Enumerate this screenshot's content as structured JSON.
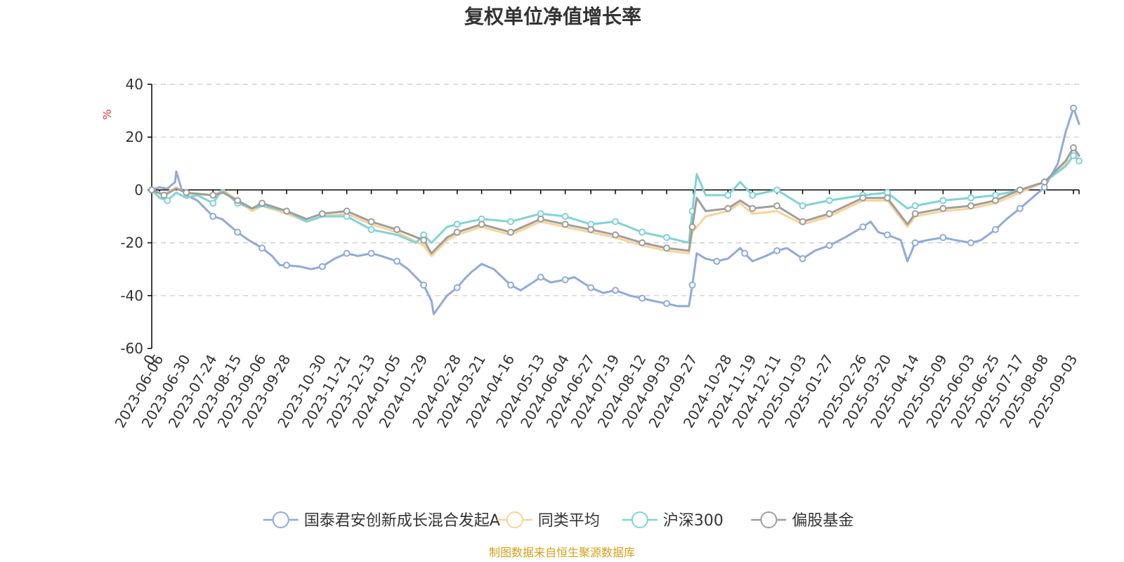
{
  "chart_data": {
    "type": "line",
    "title": "复权单位净值增长率",
    "ylabel": "%",
    "ylim": [
      -60,
      40
    ],
    "yticks": [
      40,
      20,
      0,
      -20,
      -40,
      -60
    ],
    "x_start_label": "0",
    "x_dates": [
      "2023-06-06",
      "2023-06-30",
      "2023-07-24",
      "2023-08-15",
      "2023-09-06",
      "2023-09-28",
      "2023-10-30",
      "2023-11-21",
      "2023-12-13",
      "2024-01-05",
      "2024-01-29",
      "2024-02-28",
      "2024-03-21",
      "2024-04-16",
      "2024-05-13",
      "2024-06-04",
      "2024-06-27",
      "2024-07-19",
      "2024-08-12",
      "2024-09-03",
      "2024-09-27",
      "2024-10-28",
      "2024-11-19",
      "2024-12-11",
      "2025-01-03",
      "2025-01-27",
      "2025-02-26",
      "2025-03-20",
      "2025-04-14",
      "2025-05-09",
      "2025-06-03",
      "2025-06-25",
      "2025-07-17",
      "2025-08-08",
      "2025-09-03"
    ],
    "x_end": "2025-09-08",
    "grid": true,
    "legend_position": "bottom-center",
    "series": [
      {
        "name": "国泰君安创新成长混合发起A",
        "color": "#8faadc",
        "points": [
          [
            "2023-05-30",
            0
          ],
          [
            "2023-06-06",
            1
          ],
          [
            "2023-06-13",
            0.5
          ],
          [
            "2023-06-20",
            3
          ],
          [
            "2023-06-21",
            7
          ],
          [
            "2023-06-26",
            0
          ],
          [
            "2023-06-30",
            -2
          ],
          [
            "2023-07-10",
            -4
          ],
          [
            "2023-07-24",
            -10
          ],
          [
            "2023-08-01",
            -11
          ],
          [
            "2023-08-15",
            -16
          ],
          [
            "2023-08-25",
            -19
          ],
          [
            "2023-09-06",
            -22
          ],
          [
            "2023-09-15",
            -25
          ],
          [
            "2023-09-22",
            -28.5
          ],
          [
            "2023-09-28",
            -28.5
          ],
          [
            "2023-10-10",
            -29
          ],
          [
            "2023-10-20",
            -30
          ],
          [
            "2023-10-30",
            -29
          ],
          [
            "2023-11-10",
            -26
          ],
          [
            "2023-11-21",
            -24
          ],
          [
            "2023-12-01",
            -25
          ],
          [
            "2023-12-13",
            -24
          ],
          [
            "2023-12-22",
            -25
          ],
          [
            "2024-01-05",
            -27
          ],
          [
            "2024-01-15",
            -30
          ],
          [
            "2024-01-22",
            -33
          ],
          [
            "2024-01-29",
            -36
          ],
          [
            "2024-02-05",
            -42
          ],
          [
            "2024-02-07",
            -47
          ],
          [
            "2024-02-19",
            -40
          ],
          [
            "2024-02-28",
            -37
          ],
          [
            "2024-03-05",
            -34
          ],
          [
            "2024-03-12",
            -31
          ],
          [
            "2024-03-21",
            -28
          ],
          [
            "2024-04-01",
            -30
          ],
          [
            "2024-04-16",
            -36
          ],
          [
            "2024-04-25",
            -38
          ],
          [
            "2024-05-06",
            -35
          ],
          [
            "2024-05-13",
            -33
          ],
          [
            "2024-05-22",
            -35
          ],
          [
            "2024-06-04",
            -34
          ],
          [
            "2024-06-12",
            -33
          ],
          [
            "2024-06-27",
            -37
          ],
          [
            "2024-07-08",
            -39
          ],
          [
            "2024-07-19",
            -38
          ],
          [
            "2024-08-01",
            -40
          ],
          [
            "2024-08-12",
            -41
          ],
          [
            "2024-08-22",
            -42
          ],
          [
            "2024-09-03",
            -43
          ],
          [
            "2024-09-13",
            -44
          ],
          [
            "2024-09-23",
            -44
          ],
          [
            "2024-09-26",
            -36
          ],
          [
            "2024-09-30",
            -24
          ],
          [
            "2024-10-08",
            -26
          ],
          [
            "2024-10-18",
            -27
          ],
          [
            "2024-10-28",
            -26
          ],
          [
            "2024-11-08",
            -22
          ],
          [
            "2024-11-12",
            -24
          ],
          [
            "2024-11-19",
            -27
          ],
          [
            "2024-12-01",
            -25
          ],
          [
            "2024-12-11",
            -23
          ],
          [
            "2024-12-20",
            -22
          ],
          [
            "2025-01-03",
            -26
          ],
          [
            "2025-01-14",
            -23
          ],
          [
            "2025-01-27",
            -21
          ],
          [
            "2025-02-10",
            -18
          ],
          [
            "2025-02-26",
            -14
          ],
          [
            "2025-03-05",
            -12
          ],
          [
            "2025-03-12",
            -16
          ],
          [
            "2025-03-20",
            -17
          ],
          [
            "2025-04-01",
            -19
          ],
          [
            "2025-04-07",
            -27
          ],
          [
            "2025-04-14",
            -20
          ],
          [
            "2025-04-25",
            -19
          ],
          [
            "2025-05-09",
            -18
          ],
          [
            "2025-05-20",
            -19
          ],
          [
            "2025-06-03",
            -20
          ],
          [
            "2025-06-12",
            -19
          ],
          [
            "2025-06-25",
            -15
          ],
          [
            "2025-07-05",
            -11
          ],
          [
            "2025-07-17",
            -7
          ],
          [
            "2025-07-28",
            -3
          ],
          [
            "2025-08-08",
            1
          ],
          [
            "2025-08-20",
            10
          ],
          [
            "2025-08-27",
            22
          ],
          [
            "2025-09-03",
            31
          ],
          [
            "2025-09-08",
            25
          ]
        ],
        "marker_dates": [
          "2023-05-30",
          "2023-07-24",
          "2023-08-15",
          "2023-09-06",
          "2023-09-28",
          "2023-10-30",
          "2023-11-21",
          "2023-12-13",
          "2024-01-05",
          "2024-01-29",
          "2024-02-28",
          "2024-04-16",
          "2024-05-13",
          "2024-06-04",
          "2024-06-27",
          "2024-07-19",
          "2024-08-12",
          "2024-09-03",
          "2024-09-26",
          "2024-10-18",
          "2024-11-12",
          "2024-12-11",
          "2025-01-03",
          "2025-01-27",
          "2025-02-26",
          "2025-03-20",
          "2025-04-14",
          "2025-05-09",
          "2025-06-03",
          "2025-06-25",
          "2025-07-17",
          "2025-08-08",
          "2025-09-03"
        ]
      },
      {
        "name": "同类平均",
        "color": "#fcd295",
        "points": [
          [
            "2023-05-30",
            0
          ],
          [
            "2023-06-10",
            -1.5
          ],
          [
            "2023-06-21",
            1
          ],
          [
            "2023-06-30",
            -1.5
          ],
          [
            "2023-07-24",
            -2
          ],
          [
            "2023-08-02",
            0
          ],
          [
            "2023-08-15",
            -4
          ],
          [
            "2023-08-28",
            -8
          ],
          [
            "2023-09-06",
            -6
          ],
          [
            "2023-09-28",
            -9
          ],
          [
            "2023-10-16",
            -12
          ],
          [
            "2023-10-30",
            -10
          ],
          [
            "2023-11-21",
            -9
          ],
          [
            "2023-12-13",
            -13
          ],
          [
            "2024-01-05",
            -16
          ],
          [
            "2024-01-29",
            -21
          ],
          [
            "2024-02-05",
            -25
          ],
          [
            "2024-02-19",
            -19
          ],
          [
            "2024-02-28",
            -17
          ],
          [
            "2024-03-21",
            -14
          ],
          [
            "2024-04-16",
            -17
          ],
          [
            "2024-05-13",
            -12
          ],
          [
            "2024-06-04",
            -14
          ],
          [
            "2024-06-27",
            -16
          ],
          [
            "2024-07-19",
            -18
          ],
          [
            "2024-08-12",
            -21
          ],
          [
            "2024-09-03",
            -23
          ],
          [
            "2024-09-23",
            -24
          ],
          [
            "2024-09-26",
            -16
          ],
          [
            "2024-10-08",
            -10
          ],
          [
            "2024-10-28",
            -8
          ],
          [
            "2024-11-08",
            -5
          ],
          [
            "2024-11-19",
            -9
          ],
          [
            "2024-12-11",
            -8
          ],
          [
            "2025-01-03",
            -13
          ],
          [
            "2025-01-27",
            -10
          ],
          [
            "2025-02-26",
            -4
          ],
          [
            "2025-03-20",
            -4
          ],
          [
            "2025-04-07",
            -14
          ],
          [
            "2025-04-14",
            -10
          ],
          [
            "2025-05-09",
            -8
          ],
          [
            "2025-06-03",
            -7
          ],
          [
            "2025-06-25",
            -5
          ],
          [
            "2025-07-17",
            -1
          ],
          [
            "2025-08-08",
            3
          ],
          [
            "2025-08-27",
            10
          ],
          [
            "2025-09-03",
            13
          ],
          [
            "2025-09-08",
            12
          ]
        ],
        "marker_dates": []
      },
      {
        "name": "沪深300",
        "color": "#7fd3d7",
        "points": [
          [
            "2023-05-30",
            0
          ],
          [
            "2023-06-06",
            -3
          ],
          [
            "2023-06-13",
            -4
          ],
          [
            "2023-06-21",
            -1
          ],
          [
            "2023-06-30",
            -3
          ],
          [
            "2023-07-10",
            -2
          ],
          [
            "2023-07-24",
            -5
          ],
          [
            "2023-08-01",
            0
          ],
          [
            "2023-08-15",
            -5
          ],
          [
            "2023-08-28",
            -7
          ],
          [
            "2023-09-06",
            -6
          ],
          [
            "2023-09-28",
            -8
          ],
          [
            "2023-10-16",
            -12
          ],
          [
            "2023-10-30",
            -10
          ],
          [
            "2023-11-21",
            -10
          ],
          [
            "2023-12-13",
            -15
          ],
          [
            "2024-01-05",
            -17
          ],
          [
            "2024-01-22",
            -20
          ],
          [
            "2024-01-29",
            -17
          ],
          [
            "2024-02-05",
            -20
          ],
          [
            "2024-02-19",
            -14
          ],
          [
            "2024-02-28",
            -13
          ],
          [
            "2024-03-21",
            -11
          ],
          [
            "2024-04-16",
            -12
          ],
          [
            "2024-05-13",
            -9
          ],
          [
            "2024-06-04",
            -10
          ],
          [
            "2024-06-27",
            -13
          ],
          [
            "2024-07-19",
            -12
          ],
          [
            "2024-08-12",
            -16
          ],
          [
            "2024-09-03",
            -18
          ],
          [
            "2024-09-23",
            -20
          ],
          [
            "2024-09-26",
            -8
          ],
          [
            "2024-09-30",
            6
          ],
          [
            "2024-10-08",
            -2
          ],
          [
            "2024-10-28",
            -2
          ],
          [
            "2024-11-08",
            3
          ],
          [
            "2024-11-19",
            -2
          ],
          [
            "2024-12-11",
            0
          ],
          [
            "2025-01-03",
            -6
          ],
          [
            "2025-01-27",
            -4
          ],
          [
            "2025-02-26",
            -2
          ],
          [
            "2025-03-20",
            -1
          ],
          [
            "2025-04-07",
            -7
          ],
          [
            "2025-04-14",
            -6
          ],
          [
            "2025-05-09",
            -4
          ],
          [
            "2025-06-03",
            -3
          ],
          [
            "2025-06-25",
            -2
          ],
          [
            "2025-07-17",
            0
          ],
          [
            "2025-08-08",
            3
          ],
          [
            "2025-08-27",
            9
          ],
          [
            "2025-09-03",
            13
          ],
          [
            "2025-09-08",
            11
          ]
        ],
        "marker_dates": [
          "2023-05-30",
          "2023-06-13",
          "2023-07-24",
          "2023-08-15",
          "2023-09-28",
          "2023-11-21",
          "2023-12-13",
          "2024-01-29",
          "2024-02-28",
          "2024-03-21",
          "2024-04-16",
          "2024-05-13",
          "2024-06-04",
          "2024-06-27",
          "2024-07-19",
          "2024-08-12",
          "2024-09-03",
          "2024-09-26",
          "2024-10-28",
          "2024-11-19",
          "2024-12-11",
          "2025-01-03",
          "2025-01-27",
          "2025-02-26",
          "2025-03-20",
          "2025-04-14",
          "2025-05-09",
          "2025-06-03",
          "2025-06-25",
          "2025-07-17",
          "2025-08-08",
          "2025-09-03",
          "2025-09-08"
        ]
      },
      {
        "name": "偏股基金",
        "color": "#9e9e9e",
        "points": [
          [
            "2023-05-30",
            0
          ],
          [
            "2023-06-10",
            -2
          ],
          [
            "2023-06-21",
            0.5
          ],
          [
            "2023-06-30",
            -1
          ],
          [
            "2023-07-24",
            -2
          ],
          [
            "2023-08-02",
            -1
          ],
          [
            "2023-08-15",
            -4
          ],
          [
            "2023-08-28",
            -7
          ],
          [
            "2023-09-06",
            -5
          ],
          [
            "2023-09-28",
            -8
          ],
          [
            "2023-10-16",
            -11
          ],
          [
            "2023-10-30",
            -9
          ],
          [
            "2023-11-21",
            -8
          ],
          [
            "2023-12-13",
            -12
          ],
          [
            "2024-01-05",
            -15
          ],
          [
            "2024-01-29",
            -19
          ],
          [
            "2024-02-05",
            -24
          ],
          [
            "2024-02-19",
            -18
          ],
          [
            "2024-02-28",
            -16
          ],
          [
            "2024-03-21",
            -13
          ],
          [
            "2024-04-16",
            -16
          ],
          [
            "2024-05-13",
            -11
          ],
          [
            "2024-06-04",
            -13
          ],
          [
            "2024-06-27",
            -15
          ],
          [
            "2024-07-19",
            -17
          ],
          [
            "2024-08-12",
            -20
          ],
          [
            "2024-09-03",
            -22
          ],
          [
            "2024-09-23",
            -23
          ],
          [
            "2024-09-26",
            -14
          ],
          [
            "2024-09-30",
            -3
          ],
          [
            "2024-10-08",
            -8
          ],
          [
            "2024-10-28",
            -7
          ],
          [
            "2024-11-08",
            -4
          ],
          [
            "2024-11-19",
            -7
          ],
          [
            "2024-12-11",
            -6
          ],
          [
            "2025-01-03",
            -12
          ],
          [
            "2025-01-27",
            -9
          ],
          [
            "2025-02-26",
            -3
          ],
          [
            "2025-03-20",
            -3
          ],
          [
            "2025-04-07",
            -13
          ],
          [
            "2025-04-14",
            -9
          ],
          [
            "2025-05-09",
            -7
          ],
          [
            "2025-06-03",
            -6
          ],
          [
            "2025-06-25",
            -4
          ],
          [
            "2025-07-17",
            0
          ],
          [
            "2025-08-08",
            3
          ],
          [
            "2025-08-27",
            11
          ],
          [
            "2025-09-03",
            16
          ],
          [
            "2025-09-08",
            13
          ]
        ],
        "marker_dates": [
          "2023-05-30",
          "2023-06-10",
          "2023-06-30",
          "2023-07-24",
          "2023-08-15",
          "2023-09-06",
          "2023-09-28",
          "2023-10-30",
          "2023-11-21",
          "2023-12-13",
          "2024-01-05",
          "2024-01-29",
          "2024-02-28",
          "2024-03-21",
          "2024-04-16",
          "2024-05-13",
          "2024-06-04",
          "2024-06-27",
          "2024-07-19",
          "2024-08-12",
          "2024-09-03",
          "2024-09-26",
          "2024-10-28",
          "2024-11-19",
          "2024-12-11",
          "2025-01-03",
          "2025-01-27",
          "2025-02-26",
          "2025-03-20",
          "2025-04-14",
          "2025-05-09",
          "2025-06-03",
          "2025-06-25",
          "2025-07-17",
          "2025-08-08",
          "2025-09-03"
        ]
      }
    ]
  },
  "source": "制图数据来自恒生聚源数据库"
}
